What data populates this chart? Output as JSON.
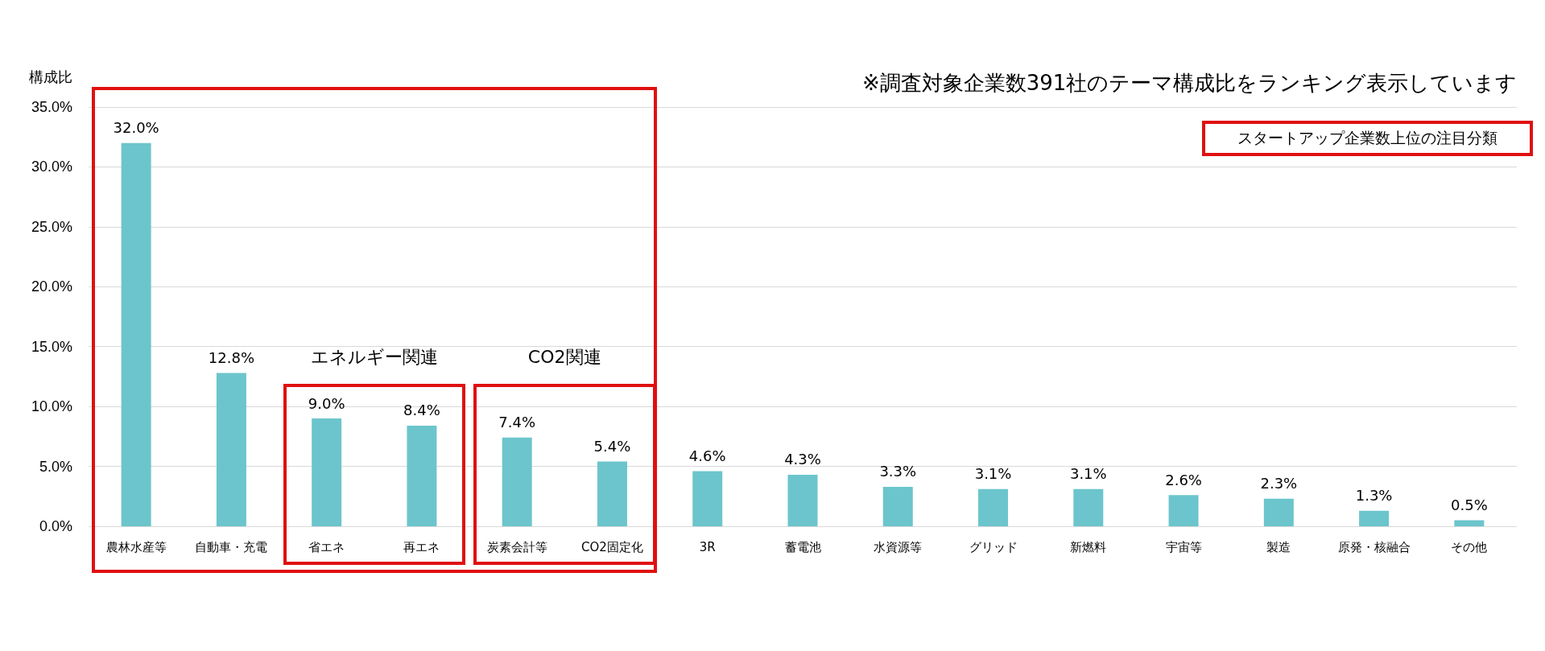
{
  "chart_data": {
    "type": "bar",
    "ylabel": "構成比",
    "categories": [
      "農林水産等",
      "自動車・充電",
      "省エネ",
      "再エネ",
      "炭素会計等",
      "CO2固定化",
      "3R",
      "蓄電池",
      "水資源等",
      "グリッド",
      "新燃料",
      "宇宙等",
      "製造",
      "原発・核融合",
      "その他"
    ],
    "values": [
      32.0,
      12.8,
      9.0,
      8.4,
      7.4,
      5.4,
      4.6,
      4.3,
      3.3,
      3.1,
      3.1,
      2.6,
      2.3,
      1.3,
      0.5
    ],
    "value_labels": [
      "32.0%",
      "12.8%",
      "9.0%",
      "8.4%",
      "7.4%",
      "5.4%",
      "4.6%",
      "4.3%",
      "3.3%",
      "3.1%",
      "3.1%",
      "2.6%",
      "2.3%",
      "1.3%",
      "0.5%"
    ],
    "color": "#6cc5cc",
    "ylim": [
      0,
      35
    ],
    "yticks": [
      {
        "value": 0,
        "label": "0.0%"
      },
      {
        "value": 5,
        "label": "5.0%"
      },
      {
        "value": 10,
        "label": "10.0%"
      },
      {
        "value": 15,
        "label": "15.0%"
      },
      {
        "value": 20,
        "label": "20.0%"
      },
      {
        "value": 25,
        "label": "25.0%"
      },
      {
        "value": 30,
        "label": "30.0%"
      },
      {
        "value": 35,
        "label": "35.0%"
      }
    ],
    "grid": "y",
    "annotations": [
      "※調査対象企業数391社のテーマ構成比をランキング表示しています",
      "スタートアップ企業数上位の注目分類",
      "エネルギー関連",
      "CO2関連"
    ]
  }
}
